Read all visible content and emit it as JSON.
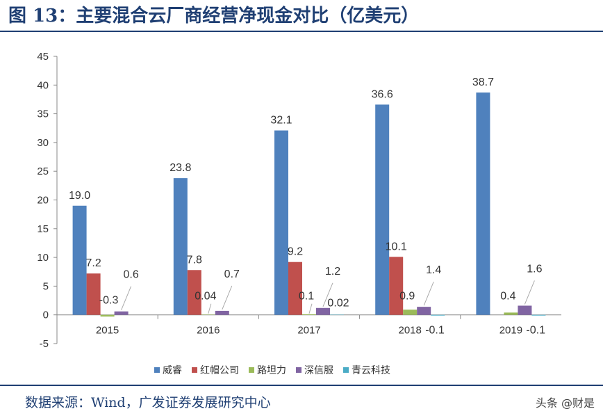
{
  "header": {
    "title": "图 13：主要混合云厂商经营净现金对比（亿美元）"
  },
  "footer": {
    "source": "数据来源：Wind，广发证券发展研究中心",
    "watermark": "头条 @财是"
  },
  "chart_data": {
    "type": "bar",
    "title": "",
    "xlabel": "",
    "ylabel": "",
    "ylim": [
      -5,
      45
    ],
    "yticks": [
      -5,
      0,
      5,
      10,
      15,
      20,
      25,
      30,
      35,
      40,
      45
    ],
    "grid": false,
    "legend_position": "bottom",
    "categories": [
      "2015",
      "2016",
      "2017",
      "2018",
      "2019"
    ],
    "series": [
      {
        "name": "威睿",
        "color": "#4f81bd",
        "values": [
          19.0,
          23.8,
          32.1,
          36.6,
          38.7
        ],
        "labels": [
          "19.0",
          "23.8",
          "32.1",
          "36.6",
          "38.7"
        ]
      },
      {
        "name": "红帽公司",
        "color": "#c0504d",
        "values": [
          7.2,
          7.8,
          9.2,
          10.1,
          null
        ],
        "labels": [
          "7.2",
          "7.8",
          "9.2",
          "10.1",
          ""
        ]
      },
      {
        "name": "路坦力",
        "color": "#9bbb59",
        "values": [
          -0.3,
          0.04,
          0.1,
          0.9,
          0.4
        ],
        "labels": [
          "-0.3",
          "0.04",
          "0.1",
          "0.9",
          "0.4"
        ]
      },
      {
        "name": "深信服",
        "color": "#8064a2",
        "values": [
          0.6,
          0.7,
          1.2,
          1.4,
          1.6
        ],
        "labels": [
          "0.6",
          "0.7",
          "1.2",
          "1.4",
          "1.6"
        ]
      },
      {
        "name": "青云科技",
        "color": "#4bacc6",
        "values": [
          null,
          null,
          0.02,
          -0.1,
          -0.1
        ],
        "labels": [
          "",
          "",
          "0.02",
          "-0.1",
          "-0.1"
        ]
      }
    ]
  }
}
